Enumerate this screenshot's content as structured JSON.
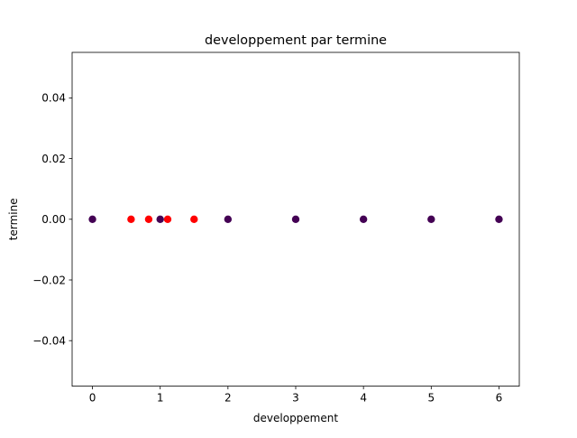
{
  "chart_data": {
    "type": "scatter",
    "title": "developpement par termine",
    "xlabel": "developpement",
    "ylabel": "termine",
    "xlim": [
      -0.3,
      6.3
    ],
    "ylim": [
      -0.055,
      0.055
    ],
    "xticks": [
      0,
      1,
      2,
      3,
      4,
      5,
      6
    ],
    "xtick_labels": [
      "0",
      "1",
      "2",
      "3",
      "4",
      "5",
      "6"
    ],
    "yticks": [
      -0.04,
      -0.02,
      0.0,
      0.02,
      0.04
    ],
    "ytick_labels": [
      "−0.04",
      "−0.02",
      "0.00",
      "0.02",
      "0.04"
    ],
    "grid": false,
    "series": [
      {
        "color": "#ff0000",
        "points": [
          {
            "x": 0.57,
            "y": 0.0
          },
          {
            "x": 0.83,
            "y": 0.0
          },
          {
            "x": 1.11,
            "y": 0.0
          },
          {
            "x": 1.5,
            "y": 0.0
          }
        ]
      },
      {
        "color": "#440154",
        "points": [
          {
            "x": 0,
            "y": 0.0
          },
          {
            "x": 1,
            "y": 0.0
          },
          {
            "x": 2,
            "y": 0.0
          },
          {
            "x": 3,
            "y": 0.0
          },
          {
            "x": 4,
            "y": 0.0
          },
          {
            "x": 5,
            "y": 0.0
          },
          {
            "x": 6,
            "y": 0.0
          }
        ]
      }
    ]
  }
}
